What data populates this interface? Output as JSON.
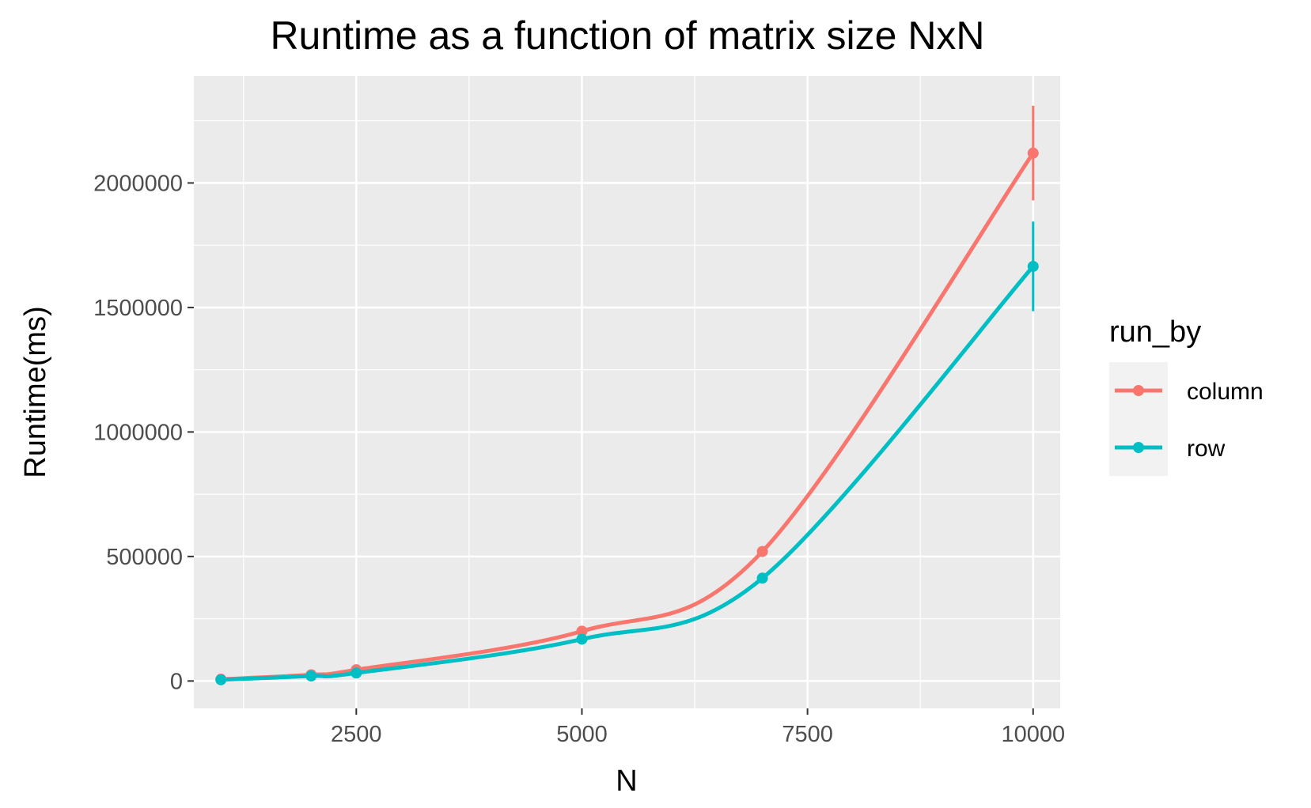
{
  "chart_data": {
    "type": "line",
    "title": "Runtime as a function of matrix size NxN",
    "xlabel": "N",
    "ylabel": "Runtime(ms)",
    "xlim": [
      700,
      10300
    ],
    "ylim": [
      -110000,
      2430000
    ],
    "x_ticks": [
      2500,
      5000,
      7500,
      10000
    ],
    "x_tick_labels": [
      "2500",
      "5000",
      "7500",
      "10000"
    ],
    "x_minor_ticks": [
      1250,
      3750,
      6250,
      8750
    ],
    "y_ticks": [
      0,
      500000,
      1000000,
      1500000,
      2000000
    ],
    "y_tick_labels": [
      "0",
      "500000",
      "1000000",
      "1500000",
      "2000000"
    ],
    "y_minor_ticks": [
      250000,
      750000,
      1250000,
      1750000,
      2250000
    ],
    "grid": true,
    "legend": {
      "title": "run_by",
      "position": "right"
    },
    "series": [
      {
        "name": "column",
        "color": "#F8766D",
        "x": [
          1000,
          2000,
          2500,
          5000,
          7000,
          10000
        ],
        "y": [
          7000,
          25000,
          45000,
          200000,
          520000,
          2120000
        ],
        "error": [
          null,
          null,
          null,
          null,
          null,
          [
            1930000,
            2310000
          ]
        ]
      },
      {
        "name": "row",
        "color": "#00BFC4",
        "x": [
          1000,
          2000,
          2500,
          5000,
          7000,
          10000
        ],
        "y": [
          5000,
          20000,
          32000,
          168000,
          413000,
          1665000
        ],
        "error": [
          null,
          null,
          null,
          null,
          null,
          [
            1485000,
            1845000
          ]
        ]
      }
    ]
  }
}
